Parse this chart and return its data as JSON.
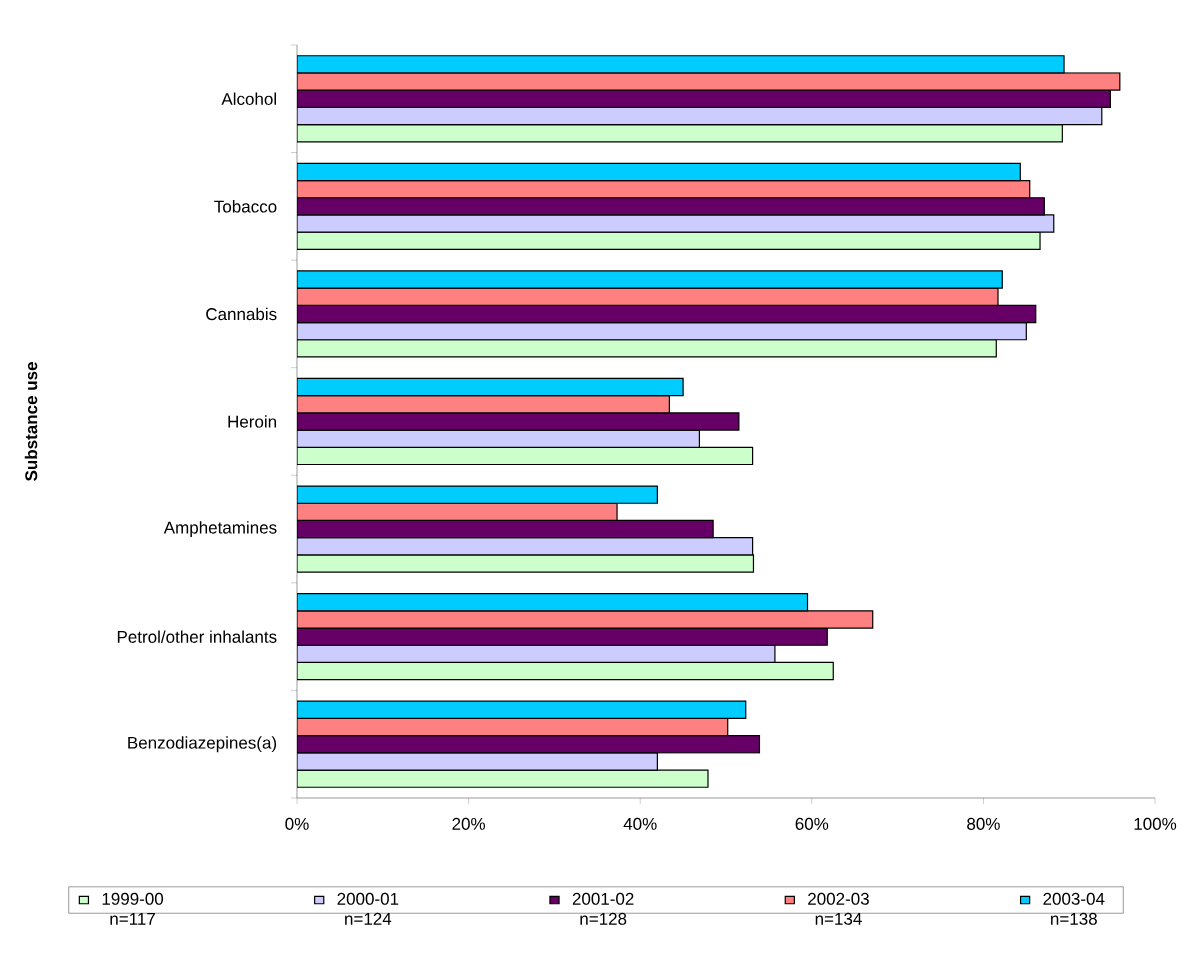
{
  "chart_data": {
    "type": "bar",
    "orientation": "horizontal",
    "ylabel": "Substance use",
    "categories": [
      "Alcohol",
      "Tobacco",
      "Cannabis",
      "Heroin",
      "Amphetamines",
      "Petrol/other inhalants",
      "Benzodiazepines(a)"
    ],
    "series": [
      {
        "name": "1999-00 n=117",
        "color": "#ccffcc",
        "values": [
          89.2,
          86.6,
          81.5,
          53.1,
          53.2,
          62.5,
          47.9
        ]
      },
      {
        "name": "2000-01 n=124",
        "color": "#ccccff",
        "values": [
          93.8,
          88.2,
          85.0,
          46.9,
          53.1,
          55.7,
          42.0
        ]
      },
      {
        "name": "2001-02 n=128",
        "color": "#660066",
        "values": [
          94.8,
          87.1,
          86.1,
          51.5,
          48.5,
          61.8,
          53.9
        ]
      },
      {
        "name": "2002-03 n=134",
        "color": "#ff8080",
        "values": [
          95.9,
          85.4,
          81.7,
          43.4,
          37.3,
          67.1,
          50.2
        ]
      },
      {
        "name": "2003-04 n=138",
        "color": "#00ccff",
        "values": [
          89.4,
          84.3,
          82.2,
          45.0,
          42.0,
          59.5,
          52.3
        ]
      }
    ],
    "xlim": [
      0,
      100
    ],
    "xticks": [
      {
        "value": 0,
        "label": "0%"
      },
      {
        "value": 20,
        "label": "20%"
      },
      {
        "value": 40,
        "label": "40%"
      },
      {
        "value": 60,
        "label": "60%"
      },
      {
        "value": 80,
        "label": "80%"
      },
      {
        "value": 100,
        "label": "100%"
      }
    ],
    "legend": "bottom"
  }
}
